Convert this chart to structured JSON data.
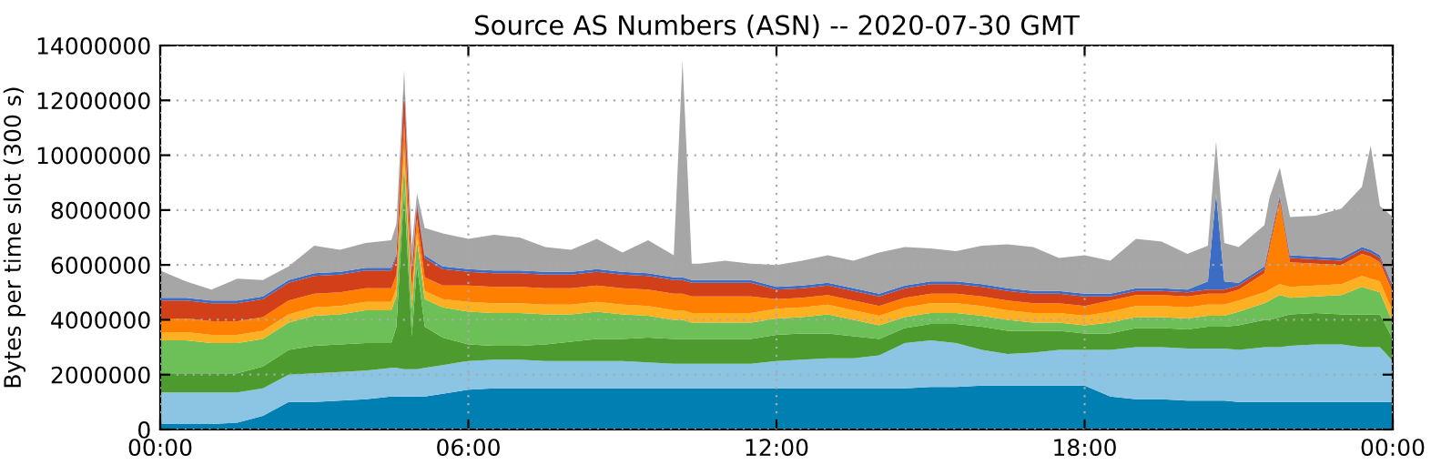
{
  "chart_data": {
    "type": "area",
    "stacked": true,
    "title": "Source AS Numbers (ASN) -- 2020-07-30 GMT",
    "ylabel": "Bytes per time slot (300 s)",
    "x": [
      0,
      0.5,
      1,
      1.5,
      2,
      2.5,
      3,
      3.5,
      4,
      4.5,
      4.6,
      4.75,
      4.9,
      5.0,
      5.15,
      5.5,
      6,
      6.5,
      7,
      7.5,
      8,
      8.5,
      9,
      9.5,
      10,
      10.17,
      10.35,
      10.5,
      11,
      11.5,
      12,
      12.5,
      13,
      13.5,
      14,
      14.5,
      15,
      15.5,
      16,
      16.5,
      17,
      17.5,
      18,
      18.5,
      19,
      19.5,
      20,
      20.4,
      20.56,
      20.72,
      21,
      21.5,
      21.6,
      21.8,
      22.0,
      22.5,
      23,
      23.4,
      23.57,
      23.75,
      24
    ],
    "xlim": [
      0,
      24
    ],
    "xticks": [
      {
        "value": 0,
        "label": "00:00"
      },
      {
        "value": 6,
        "label": "06:00"
      },
      {
        "value": 12,
        "label": "12:00"
      },
      {
        "value": 18,
        "label": "18:00"
      },
      {
        "value": 24,
        "label": "00:00"
      }
    ],
    "ylim": [
      0,
      14000000
    ],
    "yticks": [
      0,
      2000000,
      4000000,
      6000000,
      8000000,
      10000000,
      12000000,
      14000000
    ],
    "grid": true,
    "series": [
      {
        "color": "#0080b2",
        "values": [
          200000.0,
          200000.0,
          200000.0,
          250000.0,
          500000.0,
          1000000.0,
          1000000.0,
          1050000.0,
          1100000.0,
          1200000.0,
          1200000.0,
          1200000.0,
          1200000.0,
          1200000.0,
          1200000.0,
          1300000.0,
          1450000.0,
          1500000.0,
          1500000.0,
          1500000.0,
          1500000.0,
          1500000.0,
          1500000.0,
          1500000.0,
          1500000.0,
          1500000.0,
          1500000.0,
          1500000.0,
          1500000.0,
          1500000.0,
          1500000.0,
          1500000.0,
          1500000.0,
          1500000.0,
          1500000.0,
          1500000.0,
          1550000.0,
          1550000.0,
          1600000.0,
          1600000.0,
          1600000.0,
          1600000.0,
          1600000.0,
          1200000.0,
          1100000.0,
          1100000.0,
          1050000.0,
          1050000.0,
          1050000.0,
          1050000.0,
          1000000.0,
          1000000.0,
          1000000.0,
          1000000.0,
          1000000.0,
          1000000.0,
          1000000.0,
          1000000.0,
          1000000.0,
          1000000.0,
          1000000.0
        ]
      },
      {
        "color": "#8cc4e4",
        "values": [
          1150000.0,
          1150000.0,
          1150000.0,
          1100000.0,
          1000000.0,
          1000000.0,
          1050000.0,
          1050000.0,
          1050000.0,
          1050000.0,
          1050000.0,
          1000000.0,
          1000000.0,
          1000000.0,
          1050000.0,
          1050000.0,
          1050000.0,
          1050000.0,
          1050000.0,
          1000000.0,
          1000000.0,
          1000000.0,
          1000000.0,
          950000.0,
          900000.0,
          900000.0,
          900000.0,
          900000.0,
          900000.0,
          900000.0,
          1000000.0,
          1050000.0,
          1100000.0,
          1100000.0,
          1200000.0,
          1650000.0,
          1700000.0,
          1600000.0,
          1300000.0,
          1150000.0,
          1200000.0,
          1300000.0,
          1300000.0,
          1700000.0,
          1900000.0,
          1900000.0,
          1900000.0,
          1900000.0,
          1900000.0,
          1900000.0,
          1900000.0,
          2000000.0,
          2000000.0,
          2000000.0,
          2050000.0,
          2100000.0,
          2100000.0,
          2000000.0,
          2000000.0,
          2000000.0,
          1500000.0
        ]
      },
      {
        "color": "#4d9a2e",
        "values": [
          700000.0,
          700000.0,
          700000.0,
          700000.0,
          800000.0,
          900000.0,
          1000000.0,
          1000000.0,
          1000000.0,
          900000.0,
          1500000.0,
          6500000.0,
          1200000.0,
          3800000.0,
          1500000.0,
          1000000.0,
          600000.0,
          500000.0,
          500000.0,
          600000.0,
          700000.0,
          800000.0,
          800000.0,
          900000.0,
          900000.0,
          900000.0,
          900000.0,
          900000.0,
          900000.0,
          900000.0,
          950000.0,
          950000.0,
          900000.0,
          800000.0,
          600000.0,
          550000.0,
          600000.0,
          700000.0,
          850000.0,
          850000.0,
          800000.0,
          700000.0,
          600000.0,
          600000.0,
          700000.0,
          700000.0,
          700000.0,
          800000.0,
          800000.0,
          800000.0,
          900000.0,
          1000000.0,
          1000000.0,
          1100000.0,
          1150000.0,
          1150000.0,
          1100000.0,
          1200000.0,
          1200000.0,
          1200000.0,
          800000.0
        ]
      },
      {
        "color": "#6dbf57",
        "values": [
          1200000.0,
          1200000.0,
          1100000.0,
          1100000.0,
          1000000.0,
          1000000.0,
          1100000.0,
          1100000.0,
          1200000.0,
          1200000.0,
          1100000.0,
          1000000.0,
          1000000.0,
          900000.0,
          1000000.0,
          1100000.0,
          1200000.0,
          1200000.0,
          1200000.0,
          1100000.0,
          1000000.0,
          1000000.0,
          900000.0,
          800000.0,
          700000.0,
          700000.0,
          600000.0,
          600000.0,
          600000.0,
          600000.0,
          600000.0,
          600000.0,
          700000.0,
          600000.0,
          500000.0,
          400000.0,
          400000.0,
          400000.0,
          400000.0,
          400000.0,
          300000.0,
          300000.0,
          300000.0,
          400000.0,
          400000.0,
          400000.0,
          400000.0,
          400000.0,
          400000.0,
          400000.0,
          500000.0,
          600000.0,
          700000.0,
          800000.0,
          600000.0,
          600000.0,
          700000.0,
          1000000.0,
          900000.0,
          800000.0,
          600000.0
        ]
      },
      {
        "color": "#fdb022",
        "values": [
          300000.0,
          300000.0,
          300000.0,
          300000.0,
          300000.0,
          300000.0,
          300000.0,
          300000.0,
          300000.0,
          300000.0,
          300000.0,
          500000.0,
          300000.0,
          300000.0,
          300000.0,
          300000.0,
          350000.0,
          350000.0,
          350000.0,
          350000.0,
          350000.0,
          350000.0,
          350000.0,
          350000.0,
          350000.0,
          350000.0,
          350000.0,
          350000.0,
          350000.0,
          350000.0,
          350000.0,
          350000.0,
          350000.0,
          350000.0,
          350000.0,
          350000.0,
          350000.0,
          350000.0,
          350000.0,
          350000.0,
          350000.0,
          350000.0,
          350000.0,
          400000.0,
          400000.0,
          400000.0,
          400000.0,
          400000.0,
          400000.0,
          400000.0,
          400000.0,
          400000.0,
          400000.0,
          400000.0,
          400000.0,
          400000.0,
          400000.0,
          400000.0,
          400000.0,
          400000.0,
          400000.0
        ]
      },
      {
        "color": "#ff8000",
        "values": [
          500000.0,
          500000.0,
          500000.0,
          500000.0,
          500000.0,
          500000.0,
          500000.0,
          500000.0,
          500000.0,
          500000.0,
          500000.0,
          1000000.0,
          500000.0,
          500000.0,
          500000.0,
          500000.0,
          600000.0,
          600000.0,
          600000.0,
          600000.0,
          600000.0,
          600000.0,
          600000.0,
          600000.0,
          600000.0,
          600000.0,
          600000.0,
          600000.0,
          600000.0,
          600000.0,
          350000.0,
          350000.0,
          350000.0,
          350000.0,
          350000.0,
          350000.0,
          350000.0,
          350000.0,
          350000.0,
          350000.0,
          350000.0,
          350000.0,
          350000.0,
          400000.0,
          400000.0,
          400000.0,
          400000.0,
          400000.0,
          400000.0,
          400000.0,
          400000.0,
          700000.0,
          1500000.0,
          3000000.0,
          900000.0,
          800000.0,
          700000.0,
          800000.0,
          800000.0,
          700000.0,
          700000.0
        ]
      },
      {
        "color": "#d2401a",
        "values": [
          650000.0,
          650000.0,
          650000.0,
          650000.0,
          650000.0,
          650000.0,
          650000.0,
          650000.0,
          650000.0,
          650000.0,
          650000.0,
          1300000.0,
          600000.0,
          500000.0,
          700000.0,
          600000.0,
          500000.0,
          500000.0,
          500000.0,
          500000.0,
          500000.0,
          500000.0,
          500000.0,
          500000.0,
          500000.0,
          500000.0,
          500000.0,
          500000.0,
          500000.0,
          500000.0,
          350000.0,
          350000.0,
          350000.0,
          350000.0,
          350000.0,
          350000.0,
          350000.0,
          350000.0,
          350000.0,
          350000.0,
          350000.0,
          350000.0,
          350000.0,
          150000.0,
          150000.0,
          150000.0,
          150000.0,
          150000.0,
          150000.0,
          150000.0,
          150000.0,
          150000.0,
          150000.0,
          150000.0,
          150000.0,
          150000.0,
          150000.0,
          150000.0,
          150000.0,
          150000.0,
          150000.0
        ]
      },
      {
        "color": "#3d6cc4",
        "values": [
          100000.0,
          100000.0,
          100000.0,
          100000.0,
          100000.0,
          100000.0,
          100000.0,
          100000.0,
          100000.0,
          100000.0,
          100000.0,
          300000.0,
          100000.0,
          100000.0,
          100000.0,
          100000.0,
          100000.0,
          100000.0,
          100000.0,
          100000.0,
          100000.0,
          100000.0,
          100000.0,
          100000.0,
          100000.0,
          100000.0,
          100000.0,
          100000.0,
          100000.0,
          100000.0,
          100000.0,
          100000.0,
          100000.0,
          100000.0,
          100000.0,
          100000.0,
          100000.0,
          100000.0,
          100000.0,
          100000.0,
          100000.0,
          100000.0,
          100000.0,
          100000.0,
          100000.0,
          100000.0,
          100000.0,
          300000.0,
          3500000.0,
          300000.0,
          100000.0,
          100000.0,
          100000.0,
          100000.0,
          100000.0,
          100000.0,
          100000.0,
          100000.0,
          100000.0,
          100000.0,
          100000.0
        ]
      },
      {
        "color": "#a6a6a6",
        "values": [
          1000000.0,
          600000.0,
          400000.0,
          800000.0,
          600000.0,
          500000.0,
          1000000.0,
          800000.0,
          900000.0,
          1000000.0,
          1100000.0,
          300000.0,
          800000.0,
          300000.0,
          1000000.0,
          1200000.0,
          1100000.0,
          1300000.0,
          1200000.0,
          900000.0,
          800000.0,
          1100000.0,
          700000.0,
          1200000.0,
          800000.0,
          7900000.0,
          600000.0,
          600000.0,
          700000.0,
          600000.0,
          800000.0,
          900000.0,
          1000000.0,
          1000000.0,
          1500000.0,
          1400000.0,
          1200000.0,
          1100000.0,
          1400000.0,
          1600000.0,
          1600000.0,
          1200000.0,
          1400000.0,
          1200000.0,
          1800000.0,
          1700000.0,
          1300000.0,
          1300000.0,
          1900000.0,
          1400000.0,
          1300000.0,
          1500000.0,
          1600000.0,
          1000000.0,
          1400000.0,
          1500000.0,
          1800000.0,
          2200000.0,
          3800000.0,
          1800000.0,
          2500000.0
        ]
      }
    ]
  }
}
